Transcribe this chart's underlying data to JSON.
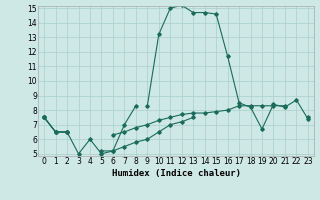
{
  "xlabel": "Humidex (Indice chaleur)",
  "ylabel": "",
  "background_color": "#cde8e5",
  "line_color": "#1a6b5a",
  "grid_color": "#aacfcc",
  "x_values": [
    0,
    1,
    2,
    3,
    4,
    5,
    6,
    7,
    8,
    9,
    10,
    11,
    12,
    13,
    14,
    15,
    16,
    17,
    18,
    19,
    20,
    21,
    22,
    23
  ],
  "series_main": [
    7.5,
    null,
    null,
    null,
    null,
    null,
    null,
    null,
    null,
    8.3,
    13.2,
    15.0,
    15.2,
    14.7,
    14.7,
    14.6,
    11.7,
    8.5,
    8.2,
    6.7,
    8.4,
    8.2,
    8.7,
    7.4
  ],
  "series1": [
    7.5,
    6.5,
    6.5,
    5.0,
    6.0,
    5.0,
    5.2,
    7.0,
    8.3,
    null,
    null,
    null,
    null,
    null,
    null,
    null,
    null,
    null,
    null,
    null,
    null,
    null,
    null,
    null
  ],
  "series2": [
    7.5,
    6.5,
    6.5,
    null,
    null,
    5.2,
    5.2,
    5.5,
    5.8,
    6.0,
    6.5,
    7.0,
    7.2,
    7.5,
    null,
    null,
    null,
    null,
    null,
    null,
    null,
    null,
    null,
    null
  ],
  "series3": [
    7.5,
    6.5,
    6.5,
    null,
    null,
    null,
    6.3,
    6.5,
    6.8,
    7.0,
    7.3,
    7.5,
    7.7,
    7.8,
    7.8,
    7.9,
    8.0,
    8.3,
    8.3,
    8.3,
    8.3,
    8.3,
    null,
    7.5
  ],
  "ylim": [
    5,
    15
  ],
  "xlim": [
    -0.5,
    23.5
  ],
  "yticks": [
    5,
    6,
    7,
    8,
    9,
    10,
    11,
    12,
    13,
    14,
    15
  ],
  "xticks": [
    0,
    1,
    2,
    3,
    4,
    5,
    6,
    7,
    8,
    9,
    10,
    11,
    12,
    13,
    14,
    15,
    16,
    17,
    18,
    19,
    20,
    21,
    22,
    23
  ],
  "tick_fontsize": 5.5,
  "xlabel_fontsize": 6.5
}
